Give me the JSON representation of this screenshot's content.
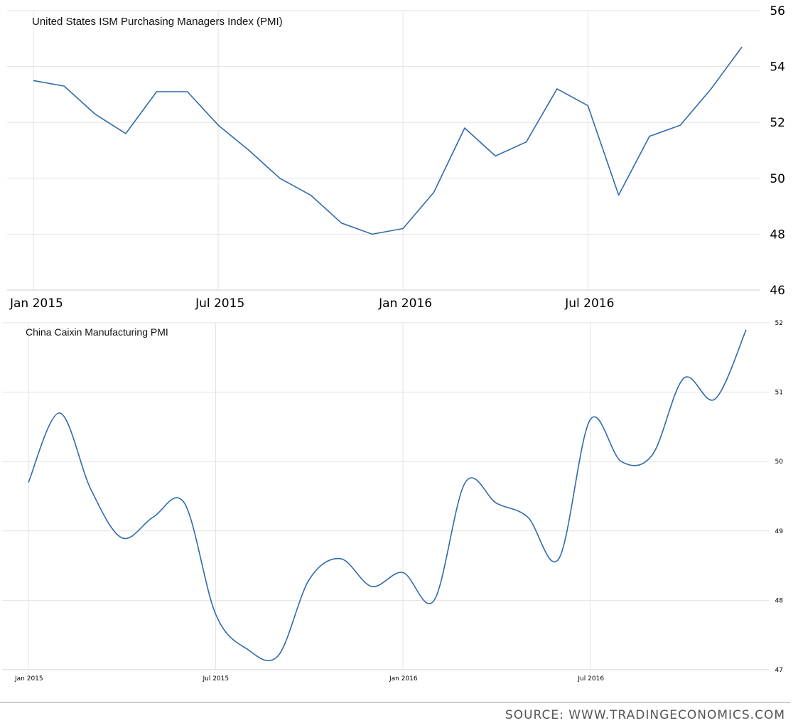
{
  "source_label": "SOURCE:  WWW.TRADINGECONOMICS.COM",
  "colors": {
    "line": "#2f6aad",
    "grid": "#e3e3e3",
    "axis": "#c8c8c8",
    "divider": "#bdbdbd"
  },
  "chart_data": [
    {
      "type": "line",
      "title": "United States ISM Purchasing Managers Index (PMI)",
      "x": [
        "2015-01",
        "2015-02",
        "2015-03",
        "2015-04",
        "2015-05",
        "2015-06",
        "2015-07",
        "2015-08",
        "2015-09",
        "2015-10",
        "2015-11",
        "2015-12",
        "2016-01",
        "2016-02",
        "2016-03",
        "2016-04",
        "2016-05",
        "2016-06",
        "2016-07",
        "2016-08",
        "2016-09",
        "2016-10",
        "2016-11",
        "2016-12"
      ],
      "series": [
        {
          "values": [
            53.5,
            53.3,
            52.3,
            51.6,
            53.1,
            53.1,
            51.9,
            51.0,
            50.0,
            49.4,
            48.4,
            48.0,
            48.2,
            49.5,
            51.8,
            50.8,
            51.3,
            53.2,
            52.6,
            49.4,
            51.5,
            51.9,
            53.2,
            54.7
          ]
        }
      ],
      "xticks": [
        "Jan 2015",
        "Jul 2015",
        "Jan 2016",
        "Jul 2016"
      ],
      "yticks": [
        "46",
        "48",
        "50",
        "52",
        "54",
        "56"
      ],
      "ylim": [
        46,
        56
      ],
      "grid": true,
      "yaxis_position": "right",
      "interpolation": "linear"
    },
    {
      "type": "line",
      "title": "China Caixin Manufacturing PMI",
      "x": [
        "2015-01",
        "2015-02",
        "2015-03",
        "2015-04",
        "2015-05",
        "2015-06",
        "2015-07",
        "2015-08",
        "2015-09",
        "2015-10",
        "2015-11",
        "2015-12",
        "2016-01",
        "2016-02",
        "2016-03",
        "2016-04",
        "2016-05",
        "2016-06",
        "2016-07",
        "2016-08",
        "2016-09",
        "2016-10",
        "2016-11",
        "2016-12"
      ],
      "series": [
        {
          "values": [
            49.7,
            50.7,
            49.6,
            48.9,
            49.2,
            49.4,
            47.8,
            47.3,
            47.2,
            48.3,
            48.6,
            48.2,
            48.4,
            48.0,
            49.7,
            49.4,
            49.2,
            48.6,
            50.6,
            50.0,
            50.1,
            51.2,
            50.9,
            51.9
          ]
        }
      ],
      "xticks": [
        "Jan 2015",
        "Jul 2015",
        "Jan 2016",
        "Jul 2016"
      ],
      "yticks": [
        "47",
        "48",
        "49",
        "50",
        "51",
        "52"
      ],
      "ylim": [
        47,
        52
      ],
      "grid": true,
      "yaxis_position": "right",
      "interpolation": "smooth"
    }
  ]
}
